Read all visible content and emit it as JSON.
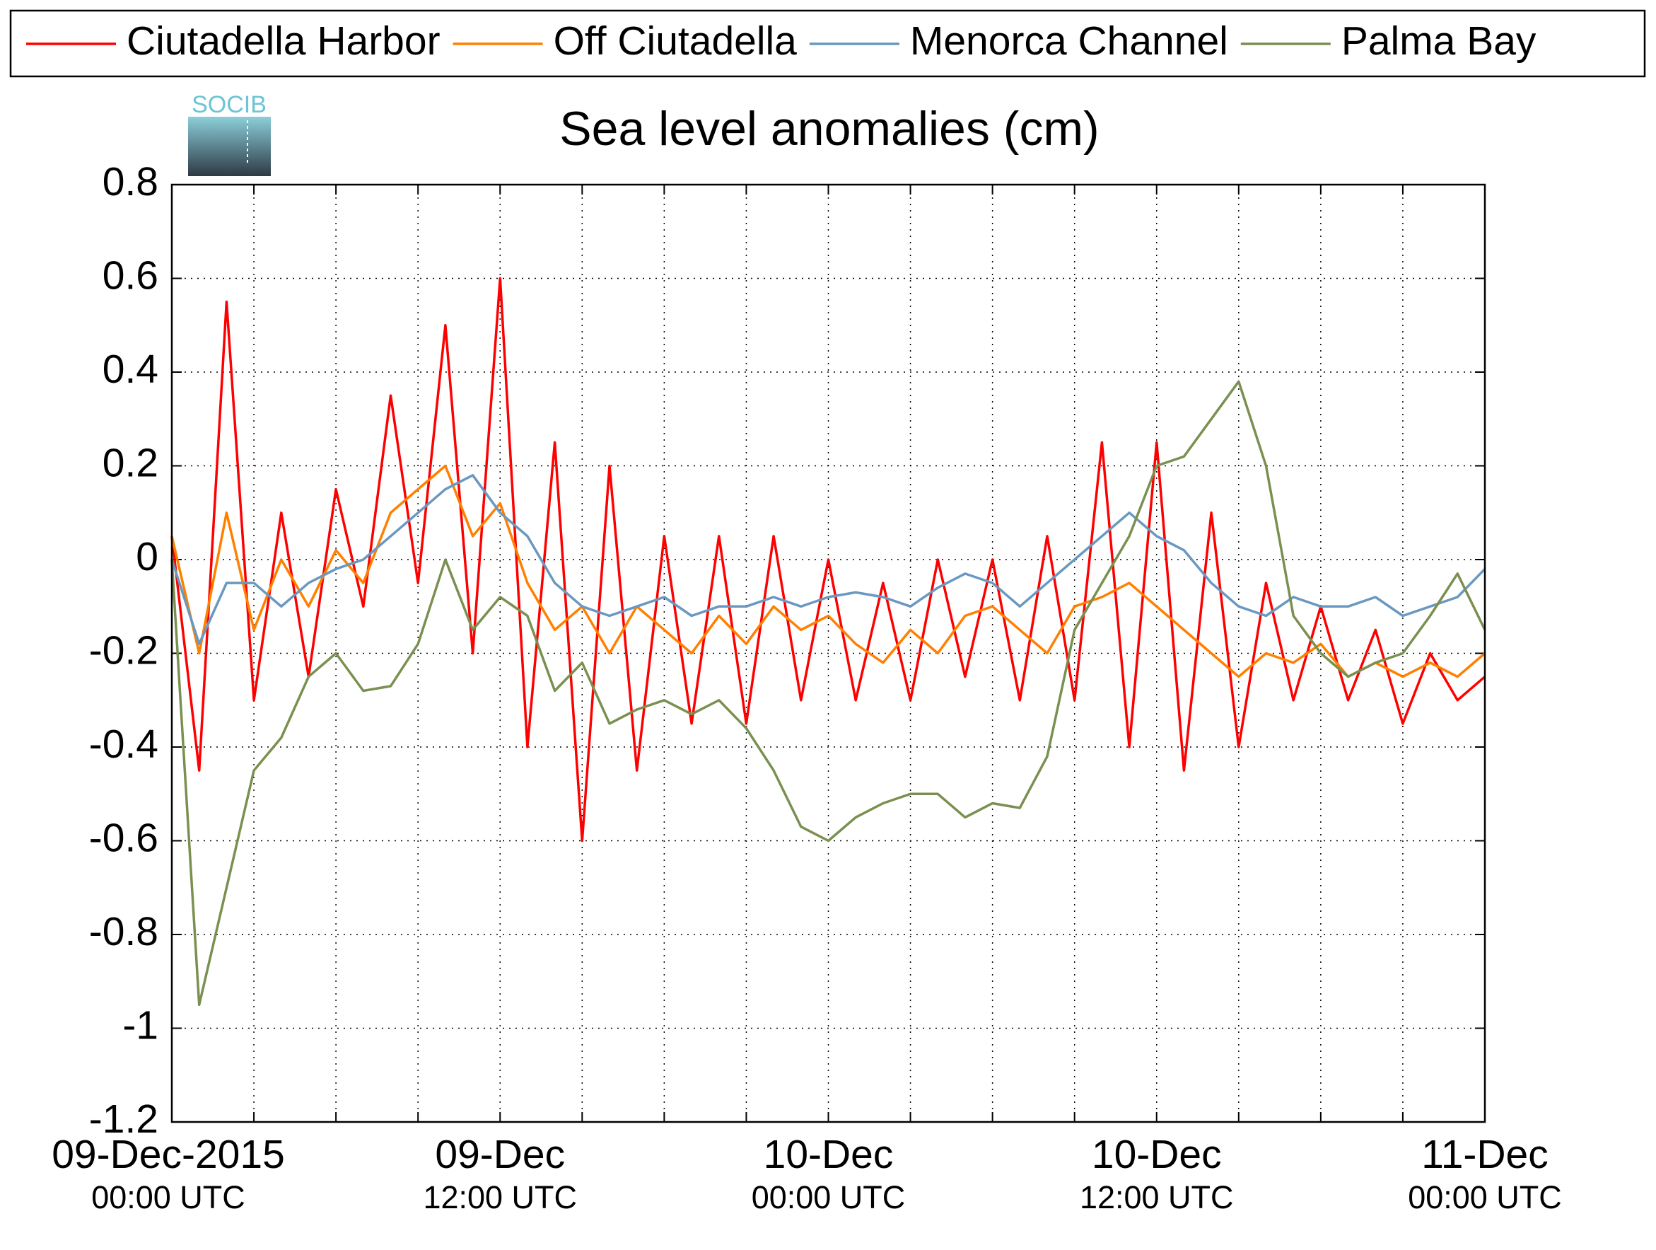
{
  "logo": "SOCIB",
  "chart_data": {
    "type": "line",
    "title": "Sea level anomalies (cm)",
    "x": [
      0,
      1,
      2,
      3,
      4,
      5,
      6,
      7,
      8,
      9,
      10,
      11,
      12,
      13,
      14,
      15,
      16,
      17,
      18,
      19,
      20,
      21,
      22,
      23,
      24,
      25,
      26,
      27,
      28,
      29,
      30,
      31,
      32,
      33,
      34,
      35,
      36,
      37,
      38,
      39,
      40,
      41,
      42,
      43,
      44,
      45,
      46,
      47,
      48
    ],
    "xlim": [
      0,
      48
    ],
    "xticks": [
      {
        "value": 0,
        "label": "09-Dec-2015",
        "sublabel": "00:00 UTC"
      },
      {
        "value": 12,
        "label": "09-Dec",
        "sublabel": "12:00 UTC"
      },
      {
        "value": 24,
        "label": "10-Dec",
        "sublabel": "00:00 UTC"
      },
      {
        "value": 36,
        "label": "10-Dec",
        "sublabel": "12:00 UTC"
      },
      {
        "value": 48,
        "label": "11-Dec",
        "sublabel": "00:00 UTC"
      }
    ],
    "xminor": [
      3,
      6,
      9,
      15,
      18,
      21,
      27,
      30,
      33,
      39,
      42,
      45
    ],
    "ylim": [
      -1.2,
      0.8
    ],
    "yticks": [
      -1.2,
      -1,
      -0.8,
      -0.6,
      -0.4,
      -0.2,
      0,
      0.2,
      0.4,
      0.6,
      0.8
    ],
    "grid": true,
    "legend": "top",
    "series": [
      {
        "name": "Ciutadella Harbor",
        "color": "#ff0000",
        "values": [
          0.05,
          -0.45,
          0.55,
          -0.3,
          0.1,
          -0.25,
          0.15,
          -0.1,
          0.35,
          -0.05,
          0.5,
          -0.2,
          0.6,
          -0.4,
          0.25,
          -0.6,
          0.2,
          -0.45,
          0.05,
          -0.35,
          0.05,
          -0.35,
          0.05,
          -0.3,
          0.0,
          -0.3,
          -0.05,
          -0.3,
          0.0,
          -0.25,
          0.0,
          -0.3,
          0.05,
          -0.3,
          0.25,
          -0.4,
          0.25,
          -0.45,
          0.1,
          -0.4,
          -0.05,
          -0.3,
          -0.1,
          -0.3,
          -0.15,
          -0.35,
          -0.2,
          -0.3,
          -0.25
        ]
      },
      {
        "name": "Off Ciutadella",
        "color": "#ff8000",
        "values": [
          0.05,
          -0.2,
          0.1,
          -0.15,
          0.0,
          -0.1,
          0.02,
          -0.05,
          0.1,
          0.15,
          0.2,
          0.05,
          0.12,
          -0.05,
          -0.15,
          -0.1,
          -0.2,
          -0.1,
          -0.15,
          -0.2,
          -0.12,
          -0.18,
          -0.1,
          -0.15,
          -0.12,
          -0.18,
          -0.22,
          -0.15,
          -0.2,
          -0.12,
          -0.1,
          -0.15,
          -0.2,
          -0.1,
          -0.08,
          -0.05,
          -0.1,
          -0.15,
          -0.2,
          -0.25,
          -0.2,
          -0.22,
          -0.18,
          -0.25,
          -0.22,
          -0.25,
          -0.22,
          -0.25,
          -0.2
        ]
      },
      {
        "name": "Menorca Channel",
        "color": "#6a98c0",
        "values": [
          0,
          -0.18,
          -0.05,
          -0.05,
          -0.1,
          -0.05,
          -0.02,
          0.0,
          0.05,
          0.1,
          0.15,
          0.18,
          0.1,
          0.05,
          -0.05,
          -0.1,
          -0.12,
          -0.1,
          -0.08,
          -0.12,
          -0.1,
          -0.1,
          -0.08,
          -0.1,
          -0.08,
          -0.07,
          -0.08,
          -0.1,
          -0.06,
          -0.03,
          -0.05,
          -0.1,
          -0.05,
          0.0,
          0.05,
          0.1,
          0.05,
          0.02,
          -0.05,
          -0.1,
          -0.12,
          -0.08,
          -0.1,
          -0.1,
          -0.08,
          -0.12,
          -0.1,
          -0.08,
          -0.02
        ]
      },
      {
        "name": "Palma Bay",
        "color": "#7a9050",
        "values": [
          0,
          -0.95,
          -0.7,
          -0.45,
          -0.38,
          -0.25,
          -0.2,
          -0.28,
          -0.27,
          -0.18,
          0.0,
          -0.15,
          -0.08,
          -0.12,
          -0.28,
          -0.22,
          -0.35,
          -0.32,
          -0.3,
          -0.33,
          -0.3,
          -0.36,
          -0.45,
          -0.57,
          -0.6,
          -0.55,
          -0.52,
          -0.5,
          -0.5,
          -0.55,
          -0.52,
          -0.53,
          -0.42,
          -0.15,
          -0.05,
          0.05,
          0.2,
          0.22,
          0.3,
          0.38,
          0.2,
          -0.12,
          -0.2,
          -0.25,
          -0.22,
          -0.2,
          -0.12,
          -0.03,
          -0.15
        ]
      }
    ]
  }
}
